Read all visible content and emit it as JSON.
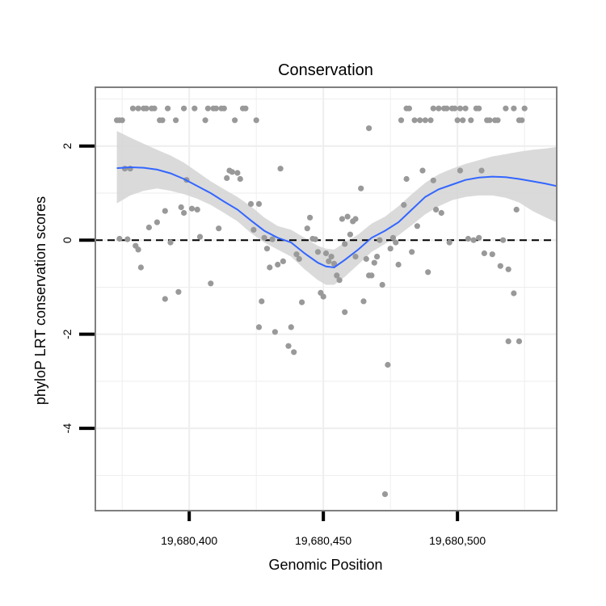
{
  "chart_data": {
    "type": "scatter",
    "title": "Conservation",
    "xlabel": "Genomic Position",
    "ylabel": "phyloP LRT conservation scores",
    "xlim": [
      19680365,
      19680537
    ],
    "ylim": [
      -5.75,
      3.25
    ],
    "x_ticks": [
      {
        "value": 19680400,
        "label": "19,680,400"
      },
      {
        "value": 19680450,
        "label": "19,680,450"
      },
      {
        "value": 19680500,
        "label": "19,680,500"
      }
    ],
    "y_ticks": [
      {
        "value": 2,
        "label": "2"
      },
      {
        "value": 0,
        "label": "0"
      },
      {
        "value": -2,
        "label": "-2"
      },
      {
        "value": -4,
        "label": "-4"
      }
    ],
    "grid": true,
    "reference_line": {
      "y": 0,
      "style": "dashed"
    },
    "colors": {
      "points": "#999999",
      "smooth_line": "#3366FF",
      "confidence_band": "#D3D3D3",
      "panel_border": "#7F7F7F",
      "grid": "#EEEEEE"
    },
    "points": [
      [
        19680373,
        2.55
      ],
      [
        19680374,
        2.55
      ],
      [
        19680375,
        2.55
      ],
      [
        19680374,
        0.03
      ],
      [
        19680376,
        1.52
      ],
      [
        19680377,
        0.02
      ],
      [
        19680378,
        1.52
      ],
      [
        19680379,
        2.8
      ],
      [
        19680380,
        -0.12
      ],
      [
        19680381,
        -0.2
      ],
      [
        19680381,
        2.8
      ],
      [
        19680382,
        -0.58
      ],
      [
        19680383,
        2.8
      ],
      [
        19680384,
        2.8
      ],
      [
        19680385,
        0.27
      ],
      [
        19680386,
        2.8
      ],
      [
        19680387,
        2.8
      ],
      [
        19680388,
        0.38
      ],
      [
        19680389,
        2.55
      ],
      [
        19680390,
        2.55
      ],
      [
        19680391,
        -1.25
      ],
      [
        19680391,
        0.62
      ],
      [
        19680392,
        2.8
      ],
      [
        19680393,
        -0.05
      ],
      [
        19680395,
        2.55
      ],
      [
        19680396,
        -1.1
      ],
      [
        19680397,
        0.7
      ],
      [
        19680398,
        2.8
      ],
      [
        19680398,
        0.58
      ],
      [
        19680399,
        1.28
      ],
      [
        19680401,
        0.67
      ],
      [
        19680402,
        2.8
      ],
      [
        19680403,
        0.65
      ],
      [
        19680404,
        0.07
      ],
      [
        19680406,
        2.55
      ],
      [
        19680407,
        2.8
      ],
      [
        19680408,
        -0.92
      ],
      [
        19680409,
        2.8
      ],
      [
        19680410,
        2.8
      ],
      [
        19680411,
        0.25
      ],
      [
        19680412,
        2.8
      ],
      [
        19680413,
        2.8
      ],
      [
        19680414,
        1.32
      ],
      [
        19680415,
        1.48
      ],
      [
        19680416,
        1.45
      ],
      [
        19680417,
        2.55
      ],
      [
        19680418,
        1.43
      ],
      [
        19680419,
        1.3
      ],
      [
        19680420,
        2.8
      ],
      [
        19680421,
        2.8
      ],
      [
        19680423,
        0.77
      ],
      [
        19680424,
        0.22
      ],
      [
        19680425,
        2.55
      ],
      [
        19680426,
        0.77
      ],
      [
        19680426,
        -1.85
      ],
      [
        19680427,
        -1.3
      ],
      [
        19680428,
        0.05
      ],
      [
        19680429,
        -0.18
      ],
      [
        19680430,
        -0.58
      ],
      [
        19680431,
        0.02
      ],
      [
        19680432,
        -1.95
      ],
      [
        19680433,
        -0.52
      ],
      [
        19680434,
        1.52
      ],
      [
        19680435,
        -0.45
      ],
      [
        19680437,
        -2.25
      ],
      [
        19680438,
        -1.85
      ],
      [
        19680439,
        -2.38
      ],
      [
        19680440,
        -0.3
      ],
      [
        19680441,
        -0.4
      ],
      [
        19680442,
        -1.32
      ],
      [
        19680444,
        0.25
      ],
      [
        19680445,
        0.48
      ],
      [
        19680446,
        0.03
      ],
      [
        19680447,
        0.02
      ],
      [
        19680448,
        -0.25
      ],
      [
        19680449,
        -1.12
      ],
      [
        19680450,
        -1.2
      ],
      [
        19680451,
        -0.28
      ],
      [
        19680452,
        -0.45
      ],
      [
        19680453,
        -0.35
      ],
      [
        19680454,
        -0.5
      ],
      [
        19680455,
        -0.75
      ],
      [
        19680456,
        -0.85
      ],
      [
        19680457,
        0.45
      ],
      [
        19680458,
        -1.53
      ],
      [
        19680458,
        -0.08
      ],
      [
        19680459,
        0.5
      ],
      [
        19680460,
        0.12
      ],
      [
        19680461,
        0.4
      ],
      [
        19680462,
        -0.35
      ],
      [
        19680462,
        0.45
      ],
      [
        19680464,
        1.1
      ],
      [
        19680465,
        -1.3
      ],
      [
        19680466,
        -0.4
      ],
      [
        19680467,
        -0.75
      ],
      [
        19680467,
        2.38
      ],
      [
        19680468,
        -0.75
      ],
      [
        19680469,
        -0.48
      ],
      [
        19680470,
        -0.35
      ],
      [
        19680471,
        0.0
      ],
      [
        19680472,
        -0.95
      ],
      [
        19680473,
        -5.4
      ],
      [
        19680474,
        -2.65
      ],
      [
        19680475,
        -0.18
      ],
      [
        19680476,
        0.05
      ],
      [
        19680477,
        -0.05
      ],
      [
        19680478,
        -0.52
      ],
      [
        19680479,
        2.55
      ],
      [
        19680480,
        0.75
      ],
      [
        19680481,
        1.3
      ],
      [
        19680481,
        2.8
      ],
      [
        19680482,
        2.8
      ],
      [
        19680483,
        -0.25
      ],
      [
        19680484,
        2.55
      ],
      [
        19680485,
        0.3
      ],
      [
        19680486,
        2.55
      ],
      [
        19680487,
        1.48
      ],
      [
        19680488,
        2.55
      ],
      [
        19680489,
        -0.68
      ],
      [
        19680490,
        2.55
      ],
      [
        19680491,
        2.8
      ],
      [
        19680491,
        1.27
      ],
      [
        19680492,
        0.65
      ],
      [
        19680493,
        2.8
      ],
      [
        19680494,
        0.58
      ],
      [
        19680495,
        2.8
      ],
      [
        19680496,
        2.8
      ],
      [
        19680497,
        -0.05
      ],
      [
        19680498,
        2.8
      ],
      [
        19680499,
        2.8
      ],
      [
        19680500,
        2.55
      ],
      [
        19680501,
        1.48
      ],
      [
        19680501,
        2.8
      ],
      [
        19680502,
        2.55
      ],
      [
        19680503,
        2.8
      ],
      [
        19680504,
        0.03
      ],
      [
        19680505,
        2.55
      ],
      [
        19680506,
        0.0
      ],
      [
        19680507,
        2.8
      ],
      [
        19680508,
        0.05
      ],
      [
        19680508,
        2.8
      ],
      [
        19680509,
        1.48
      ],
      [
        19680510,
        -0.28
      ],
      [
        19680511,
        2.55
      ],
      [
        19680512,
        2.55
      ],
      [
        19680513,
        -0.3
      ],
      [
        19680514,
        2.55
      ],
      [
        19680515,
        2.55
      ],
      [
        19680516,
        -0.55
      ],
      [
        19680517,
        0.0
      ],
      [
        19680518,
        2.8
      ],
      [
        19680519,
        -0.62
      ],
      [
        19680519,
        -2.15
      ],
      [
        19680521,
        2.8
      ],
      [
        19680521,
        -1.13
      ],
      [
        19680522,
        0.65
      ],
      [
        19680523,
        2.55
      ],
      [
        19680523,
        -2.15
      ],
      [
        19680524,
        2.55
      ],
      [
        19680525,
        2.8
      ]
    ],
    "smooth": {
      "x": [
        19680373,
        19680378,
        19680383,
        19680388,
        19680393,
        19680398,
        19680403,
        19680408,
        19680413,
        19680418,
        19680423,
        19680428,
        19680433,
        19680438,
        19680443,
        19680448,
        19680451,
        19680454,
        19680458,
        19680463,
        19680468,
        19680473,
        19680478,
        19680483,
        19680488,
        19680493,
        19680498,
        19680503,
        19680508,
        19680513,
        19680518,
        19680523,
        19680528,
        19680533,
        19680537
      ],
      "y": [
        1.53,
        1.55,
        1.54,
        1.5,
        1.42,
        1.3,
        1.15,
        1.0,
        0.82,
        0.65,
        0.42,
        0.2,
        0.05,
        -0.05,
        -0.28,
        -0.48,
        -0.56,
        -0.58,
        -0.42,
        -0.2,
        0.05,
        0.2,
        0.38,
        0.65,
        0.92,
        1.08,
        1.18,
        1.28,
        1.33,
        1.35,
        1.34,
        1.3,
        1.25,
        1.2,
        1.15
      ],
      "lower": [
        0.78,
        0.95,
        1.05,
        1.1,
        1.05,
        0.98,
        0.88,
        0.75,
        0.58,
        0.4,
        0.15,
        -0.05,
        -0.2,
        -0.35,
        -0.62,
        -0.85,
        -0.95,
        -0.95,
        -0.78,
        -0.52,
        -0.25,
        -0.08,
        0.1,
        0.32,
        0.55,
        0.72,
        0.85,
        0.92,
        0.95,
        0.95,
        0.9,
        0.8,
        0.62,
        0.48,
        0.38
      ],
      "upper": [
        2.32,
        2.18,
        2.05,
        1.92,
        1.8,
        1.65,
        1.45,
        1.25,
        1.08,
        0.92,
        0.72,
        0.48,
        0.3,
        0.22,
        0.05,
        -0.12,
        -0.18,
        -0.2,
        -0.05,
        0.12,
        0.35,
        0.5,
        0.72,
        0.98,
        1.22,
        1.4,
        1.52,
        1.62,
        1.7,
        1.78,
        1.83,
        1.88,
        1.92,
        1.95,
        1.98
      ]
    }
  }
}
